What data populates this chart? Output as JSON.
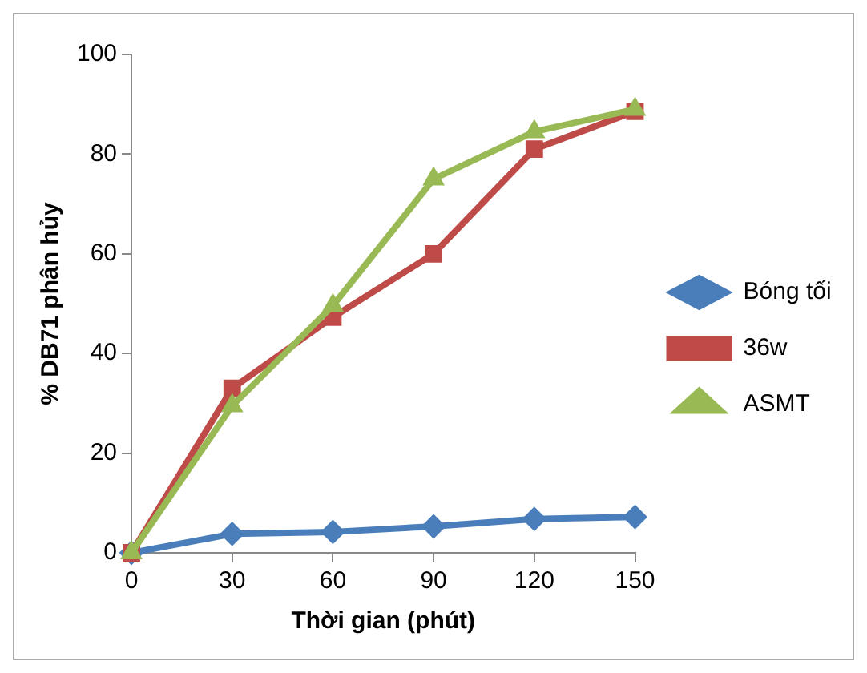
{
  "chart_data": {
    "type": "line",
    "xlabel": "Thời gian (phút)",
    "ylabel": "% DB71 phân hủy",
    "x": [
      0,
      30,
      60,
      90,
      120,
      150
    ],
    "xlim": [
      0,
      150
    ],
    "xticks": [
      0,
      30,
      60,
      90,
      120,
      150
    ],
    "ylim": [
      0,
      100
    ],
    "yticks": [
      0,
      20,
      40,
      60,
      80,
      100
    ],
    "grid": false,
    "legend": "right",
    "series": [
      {
        "name": "Bóng tối",
        "color": "#4a7ebb",
        "marker": "diamond",
        "values": [
          0,
          3.8,
          4.2,
          5.3,
          6.8,
          7.2
        ]
      },
      {
        "name": "36w",
        "color": "#be4b48",
        "marker": "square",
        "values": [
          0,
          33,
          47.3,
          60,
          81,
          88.6
        ]
      },
      {
        "name": "ASMT",
        "color": "#98b954",
        "marker": "triangle",
        "values": [
          0,
          29.5,
          49.6,
          75,
          84.5,
          89
        ]
      }
    ]
  }
}
